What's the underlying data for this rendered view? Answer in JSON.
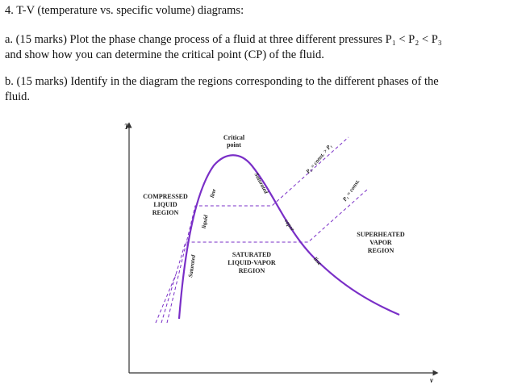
{
  "question": {
    "title": "4. T-V (temperature vs. specific volume) diagrams:",
    "part_a": [
      "a. (15 marks) Plot the phase change process of a fluid at three different pressures P₁ < P₂ < P₃",
      "and show how you can determine the critical point (CP) of the fluid."
    ],
    "part_b": [
      "b. (15 marks) Identify in the diagram the regions corresponding to the different phases of the",
      "fluid."
    ]
  },
  "diagram": {
    "y_axis": "T",
    "x_axis": "v",
    "critical_point": [
      "Critical",
      "point"
    ],
    "compressed": [
      "COMPRESSED",
      "LIQUID",
      "REGION"
    ],
    "saturated_region": [
      "SATURATED",
      "LIQUID-VAPOR",
      "REGION"
    ],
    "superheated": [
      "SUPERHEATED",
      "VAPOR",
      "REGION"
    ],
    "sat_liquid_line": [
      "Saturated",
      "liquid",
      "line"
    ],
    "sat_vapor_line": [
      "Saturated",
      "vapor",
      "line"
    ],
    "p2_label": "P₂ = const. > P₁",
    "p1_label": "P₁ = const."
  }
}
